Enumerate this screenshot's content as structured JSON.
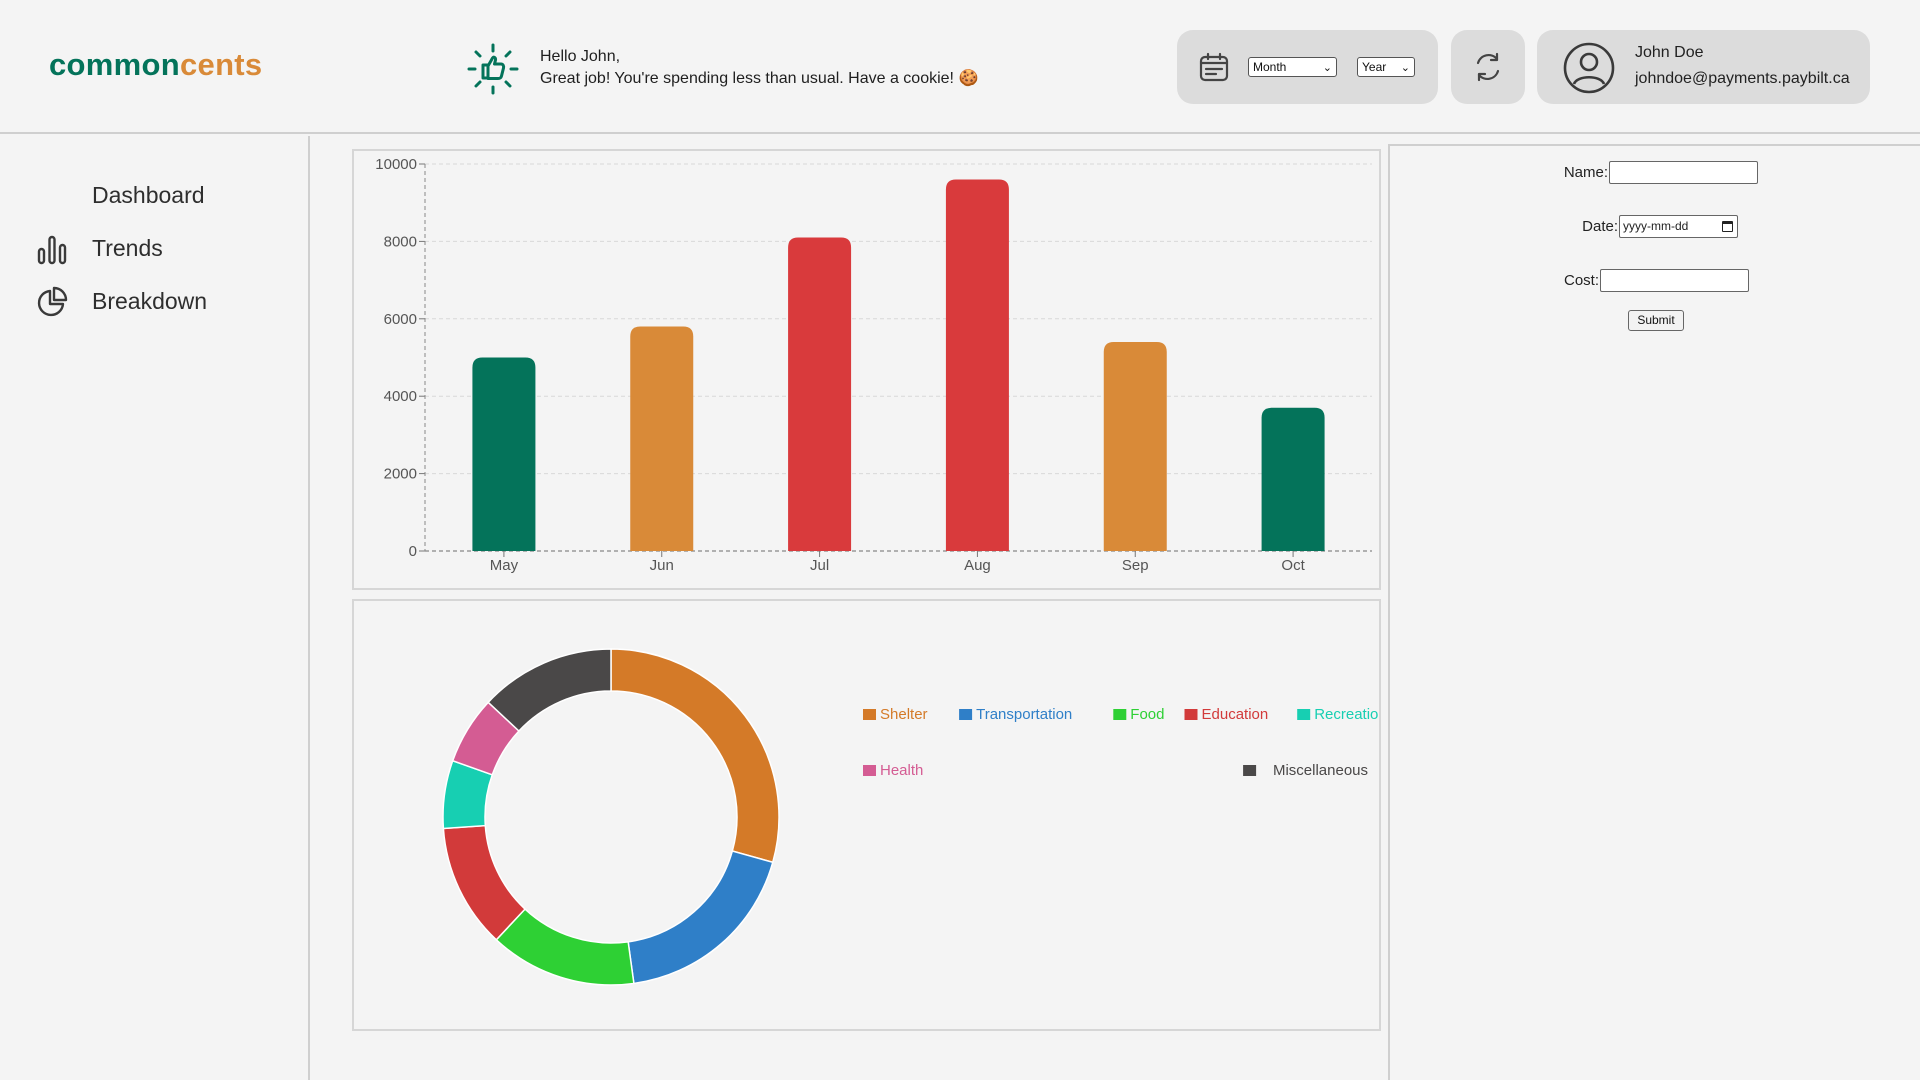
{
  "app": {
    "logo_part1": "common",
    "logo_part2": "cents",
    "brand_colors": {
      "primary": "#04735a",
      "accent": "#d98a38"
    }
  },
  "header": {
    "greeting_line1": "Hello John,",
    "greeting_line2": "Great job! You're spending less than usual. Have a cookie! 🍪",
    "month_select": "Month",
    "year_select": "Year",
    "user_name": "John Doe",
    "user_email": "johndoe@payments.paybilt.ca"
  },
  "sidebar": {
    "items": [
      {
        "label": "Dashboard",
        "icon": "none"
      },
      {
        "label": "Trends",
        "icon": "bar-chart-icon"
      },
      {
        "label": "Breakdown",
        "icon": "pie-chart-icon"
      }
    ]
  },
  "form": {
    "name_label": "Name:",
    "name_value": "",
    "date_label": "Date:",
    "date_placeholder": "yyyy-mm-dd",
    "cost_label": "Cost:",
    "cost_value": "",
    "submit_label": "Submit"
  },
  "chart_data": [
    {
      "type": "bar",
      "categories": [
        "May",
        "Jun",
        "Jul",
        "Aug",
        "Sep",
        "Oct"
      ],
      "values": [
        5000,
        5800,
        8100,
        9600,
        5400,
        3700
      ],
      "colors": [
        "#04735a",
        "#d98a38",
        "#d93a3c",
        "#d93a3c",
        "#d98a38",
        "#04735a"
      ],
      "ylim": [
        0,
        10000
      ],
      "yticks": [
        0,
        2000,
        4000,
        6000,
        8000,
        10000
      ],
      "grid": true
    },
    {
      "type": "pie",
      "donut": true,
      "labels": [
        "Shelter",
        "Transportation",
        "Food",
        "Education",
        "Recreation",
        "Health",
        "Miscellaneous"
      ],
      "values": [
        27,
        17,
        13,
        11,
        6,
        6,
        12
      ],
      "colors": [
        "#d47a28",
        "#2f7fc8",
        "#2ed034",
        "#d23a3a",
        "#17cfb2",
        "#d45c93",
        "#4a4848"
      ],
      "legend": "right"
    }
  ]
}
